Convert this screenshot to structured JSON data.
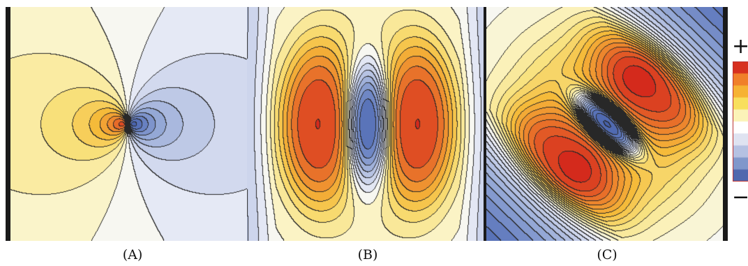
{
  "panels": [
    {
      "id": "A",
      "caption": "(A)",
      "type": "dipole"
    },
    {
      "id": "B",
      "caption": "(B)",
      "type": "quadrupole-linear"
    },
    {
      "id": "C",
      "caption": "(C)",
      "type": "quadrupole-rotated"
    }
  ],
  "colorbar": {
    "plus_label": "+",
    "minus_label": "−",
    "colors": [
      "#d7301f",
      "#f07f2a",
      "#f6b234",
      "#f8df5e",
      "#fbf3b8",
      "#ffffff",
      "#dfe3f1",
      "#b5c1e2",
      "#8097cb",
      "#4f67ae"
    ]
  },
  "colors": {
    "positive_peak": "#d7301f",
    "neutral": "#ffffff",
    "negative_peak": "#3e58a3",
    "contour_line": "#222222",
    "edge_bar": "#1a1a1a"
  }
}
